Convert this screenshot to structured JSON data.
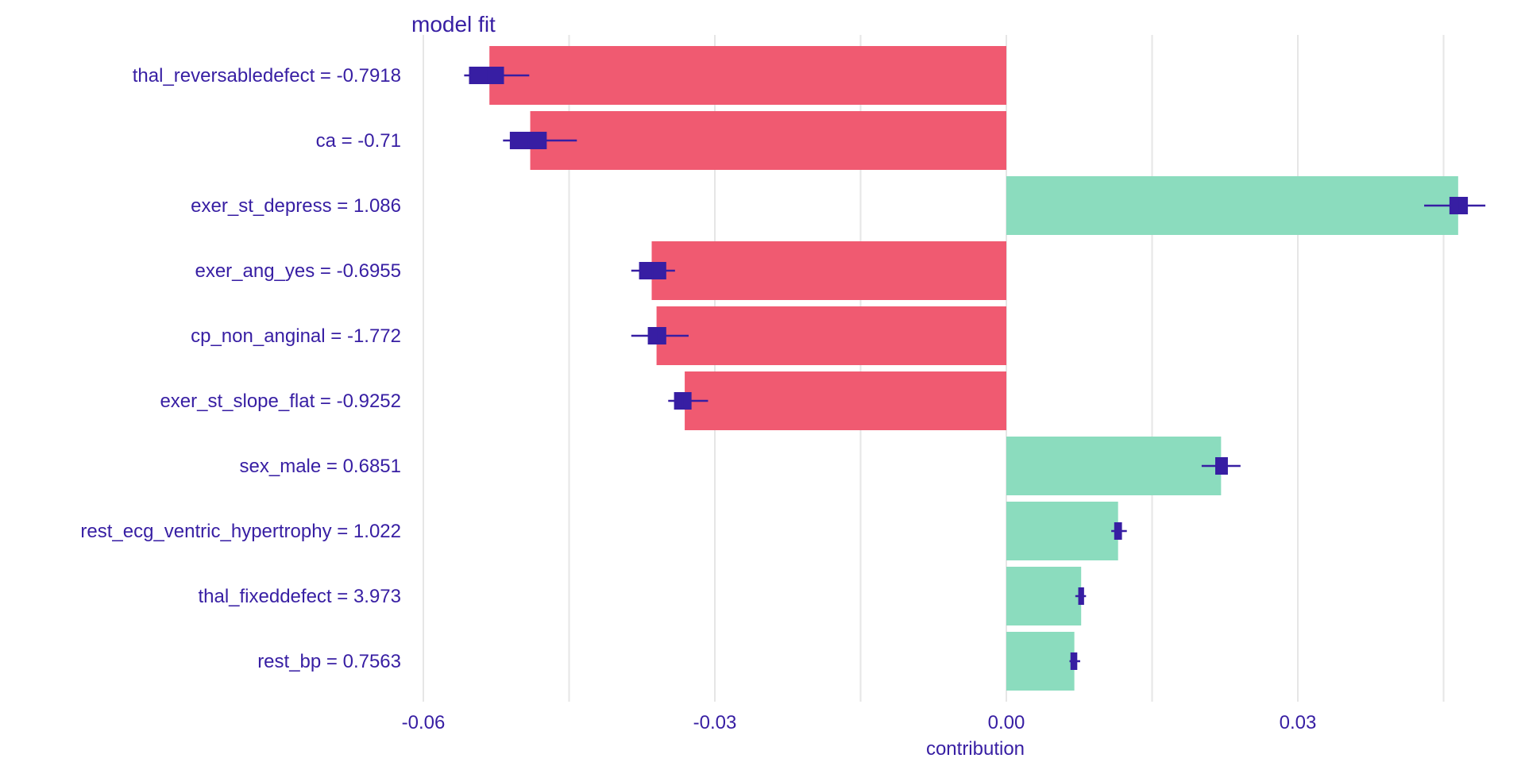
{
  "chart_data": {
    "type": "bar",
    "title": "model  fit",
    "xlabel": "contribution",
    "ylabel": "",
    "xlim": [
      -0.06,
      0.05
    ],
    "x_ticks": [
      -0.06,
      -0.03,
      0.0,
      0.03
    ],
    "x_tick_labels": [
      "-0.06",
      "-0.03",
      "0.00",
      "0.03"
    ],
    "grid": true,
    "categories": [
      "thal_reversabledefect = -0.7918",
      "ca = -0.71",
      "exer_st_depress = 1.086",
      "exer_ang_yes = -0.6955",
      "cp_non_anginal = -1.772",
      "exer_st_slope_flat = -0.9252",
      "sex_male = 0.6851",
      "rest_ecg_ventric_hypertrophy = 1.022",
      "thal_fixeddefect = 3.973",
      "rest_bp = 0.7563"
    ],
    "values": [
      -0.0532,
      -0.049,
      0.0465,
      -0.0365,
      -0.036,
      -0.0331,
      0.0221,
      0.0115,
      0.0077,
      0.007
    ],
    "boxplots": [
      {
        "whisker_low": -0.0558,
        "q1": -0.0553,
        "median": -0.0535,
        "q3": -0.0517,
        "whisker_high": -0.0491
      },
      {
        "whisker_low": -0.0518,
        "q1": -0.0511,
        "median": -0.0492,
        "q3": -0.0473,
        "whisker_high": -0.0442
      },
      {
        "whisker_low": 0.043,
        "q1": 0.0456,
        "median": 0.0466,
        "q3": 0.0475,
        "whisker_high": 0.0493
      },
      {
        "whisker_low": -0.0386,
        "q1": -0.0378,
        "median": -0.0364,
        "q3": -0.035,
        "whisker_high": -0.0341
      },
      {
        "whisker_low": -0.0386,
        "q1": -0.0369,
        "median": -0.036,
        "q3": -0.035,
        "whisker_high": -0.0327
      },
      {
        "whisker_low": -0.0348,
        "q1": -0.0342,
        "median": -0.0333,
        "q3": -0.0324,
        "whisker_high": -0.0307
      },
      {
        "whisker_low": 0.0201,
        "q1": 0.0215,
        "median": 0.0221,
        "q3": 0.0228,
        "whisker_high": 0.0241
      },
      {
        "whisker_low": 0.0108,
        "q1": 0.0111,
        "median": 0.0115,
        "q3": 0.0119,
        "whisker_high": 0.0124
      },
      {
        "whisker_low": 0.0071,
        "q1": 0.0074,
        "median": 0.0077,
        "q3": 0.008,
        "whisker_high": 0.0082
      },
      {
        "whisker_low": 0.0065,
        "q1": 0.0066,
        "median": 0.007,
        "q3": 0.0073,
        "whisker_high": 0.0076
      }
    ],
    "colors": {
      "negative": "#f05a71",
      "positive": "#8bdcbe",
      "boxplot": "#371ea3",
      "text": "#371ea3",
      "grid": "#e6e6e6"
    }
  }
}
